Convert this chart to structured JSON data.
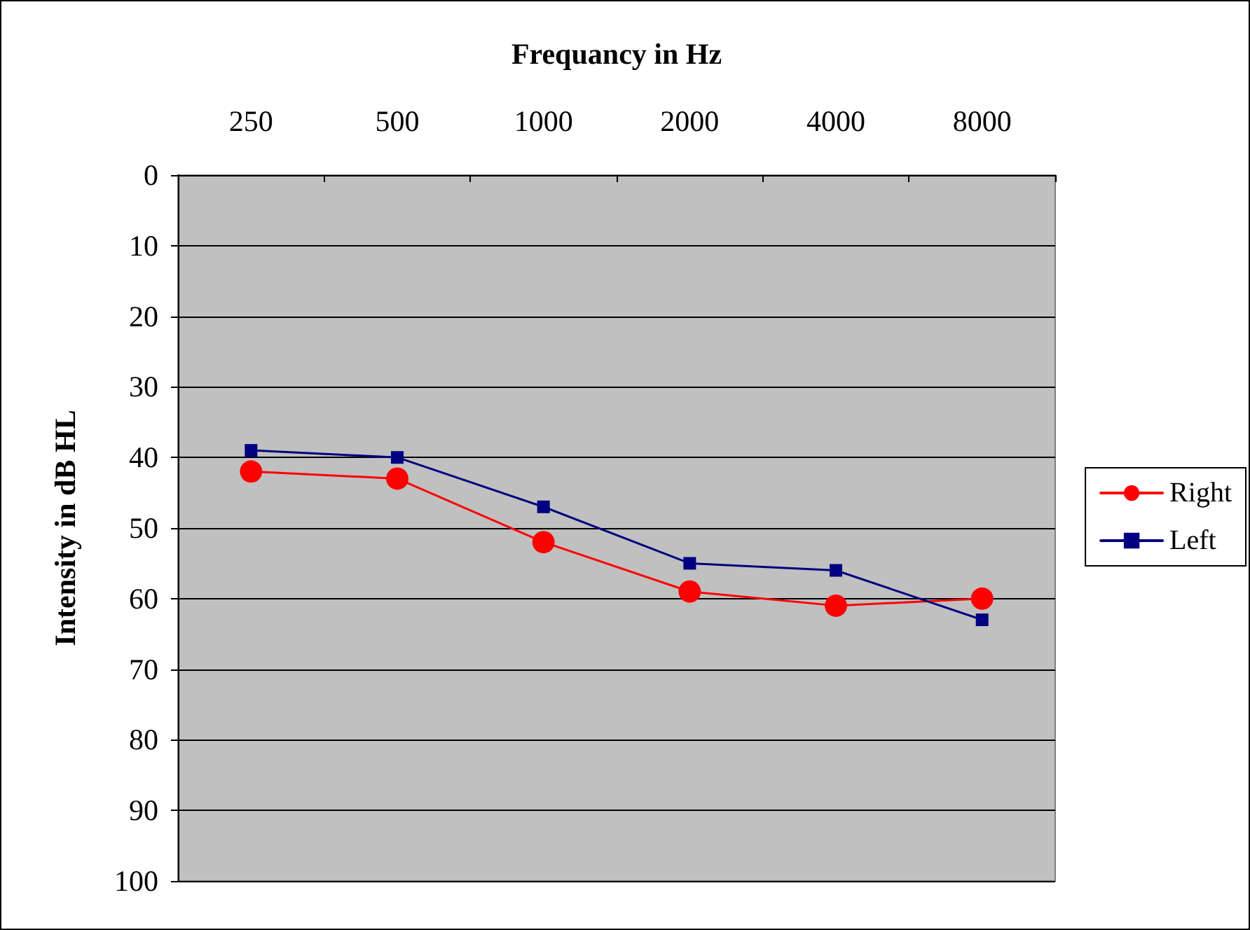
{
  "chart_data": {
    "type": "line",
    "xlabel": "Frequancy in Hz",
    "ylabel": "Intensity in dB HL",
    "categories": [
      "250",
      "500",
      "1000",
      "2000",
      "4000",
      "8000"
    ],
    "series": [
      {
        "name": "Right",
        "color": "#ff0000",
        "marker": "circle",
        "values": [
          42,
          43,
          52,
          59,
          61,
          60
        ]
      },
      {
        "name": "Left",
        "color": "#000080",
        "marker": "square",
        "values": [
          39,
          40,
          47,
          55,
          56,
          63
        ]
      }
    ],
    "ylim": [
      100,
      0
    ],
    "yticks": [
      0,
      10,
      20,
      30,
      40,
      50,
      60,
      70,
      80,
      90,
      100
    ],
    "grid": "y",
    "legend": "right"
  }
}
